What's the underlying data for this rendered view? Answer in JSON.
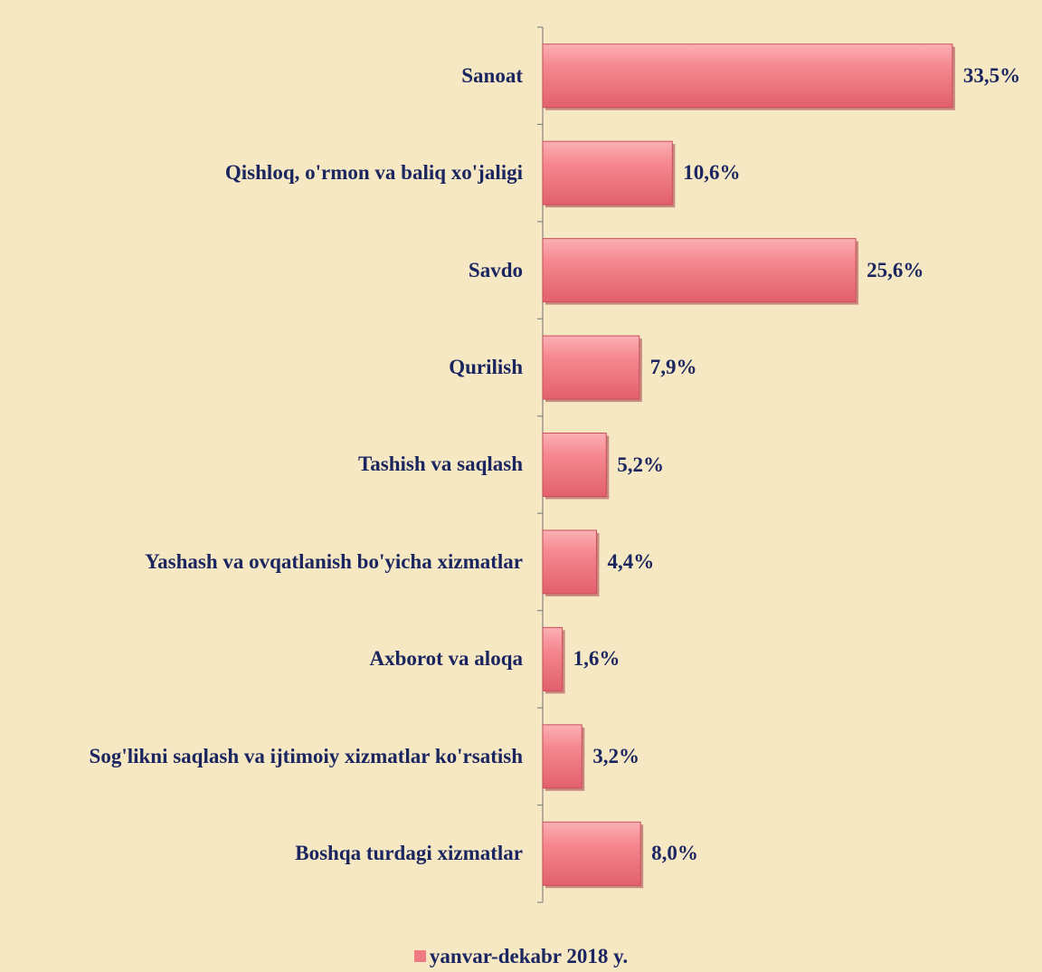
{
  "chart_data": {
    "type": "bar",
    "orientation": "horizontal",
    "categories": [
      "Sanoat",
      "Qishloq, o'rmon va baliq xo'jaligi",
      "Savdo",
      "Qurilish",
      "Tashish va saqlash",
      "Yashash va ovqatlanish bo'yicha xizmatlar",
      "Axborot va aloqa",
      "Sog'likni saqlash va ijtimoiy xizmatlar ko'rsatish",
      "Boshqa turdagi xizmatlar"
    ],
    "series": [
      {
        "name": "yanvar-dekabr 2018 y.",
        "color": "#f07a84",
        "values": [
          33.5,
          10.6,
          25.6,
          7.9,
          5.2,
          4.4,
          1.6,
          3.2,
          8.0
        ],
        "value_labels": [
          "33,5%",
          "10,6%",
          "25,6%",
          "7,9%",
          "5,2%",
          "4,4%",
          "1,6%",
          "3,2%",
          "8,0%"
        ]
      }
    ],
    "legend": "bottom"
  }
}
